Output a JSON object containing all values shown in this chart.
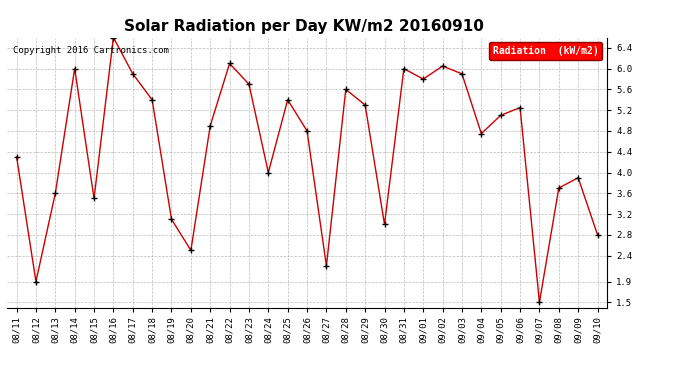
{
  "title": "Solar Radiation per Day KW/m2 20160910",
  "copyright_text": "Copyright 2016 Cartronics.com",
  "legend_label": "Radiation  (kW/m2)",
  "dates": [
    "08/11",
    "08/12",
    "08/13",
    "08/14",
    "08/15",
    "08/16",
    "08/17",
    "08/18",
    "08/19",
    "08/20",
    "08/21",
    "08/22",
    "08/23",
    "08/24",
    "08/25",
    "08/26",
    "08/27",
    "08/28",
    "08/29",
    "08/30",
    "08/31",
    "09/01",
    "09/02",
    "09/03",
    "09/04",
    "09/05",
    "09/06",
    "09/07",
    "09/08",
    "09/09",
    "09/10"
  ],
  "values": [
    4.3,
    1.9,
    3.6,
    6.0,
    3.5,
    6.6,
    5.9,
    5.4,
    3.1,
    2.5,
    4.9,
    6.1,
    5.7,
    4.0,
    5.4,
    4.8,
    2.2,
    5.6,
    5.3,
    3.0,
    6.0,
    5.8,
    6.05,
    5.9,
    4.75,
    5.1,
    5.25,
    1.5,
    3.7,
    3.9,
    2.8
  ],
  "line_color": "#cc0000",
  "marker_color": "#000000",
  "background_color": "#ffffff",
  "grid_color": "#aaaaaa",
  "ylim": [
    1.4,
    6.6
  ],
  "yticks": [
    1.5,
    1.9,
    2.4,
    2.8,
    3.2,
    3.6,
    4.0,
    4.4,
    4.8,
    5.2,
    5.6,
    6.0,
    6.4
  ],
  "title_fontsize": 11,
  "copyright_fontsize": 6.5,
  "legend_fontsize": 7,
  "tick_fontsize": 6.5
}
